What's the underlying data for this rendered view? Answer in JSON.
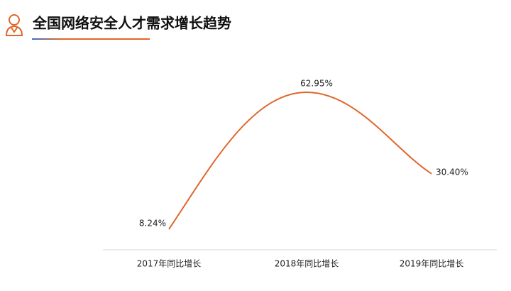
{
  "chart_data": {
    "type": "line",
    "title": "全国网络安全人才需求增长趋势",
    "categories": [
      "2017年同比增长",
      "2018年同比增长",
      "2019年同比增长"
    ],
    "values": [
      8.24,
      62.95,
      30.4
    ],
    "value_labels": [
      "8.24%",
      "62.95%",
      "30.40%"
    ],
    "color": "#e0662a",
    "smooth": true
  }
}
